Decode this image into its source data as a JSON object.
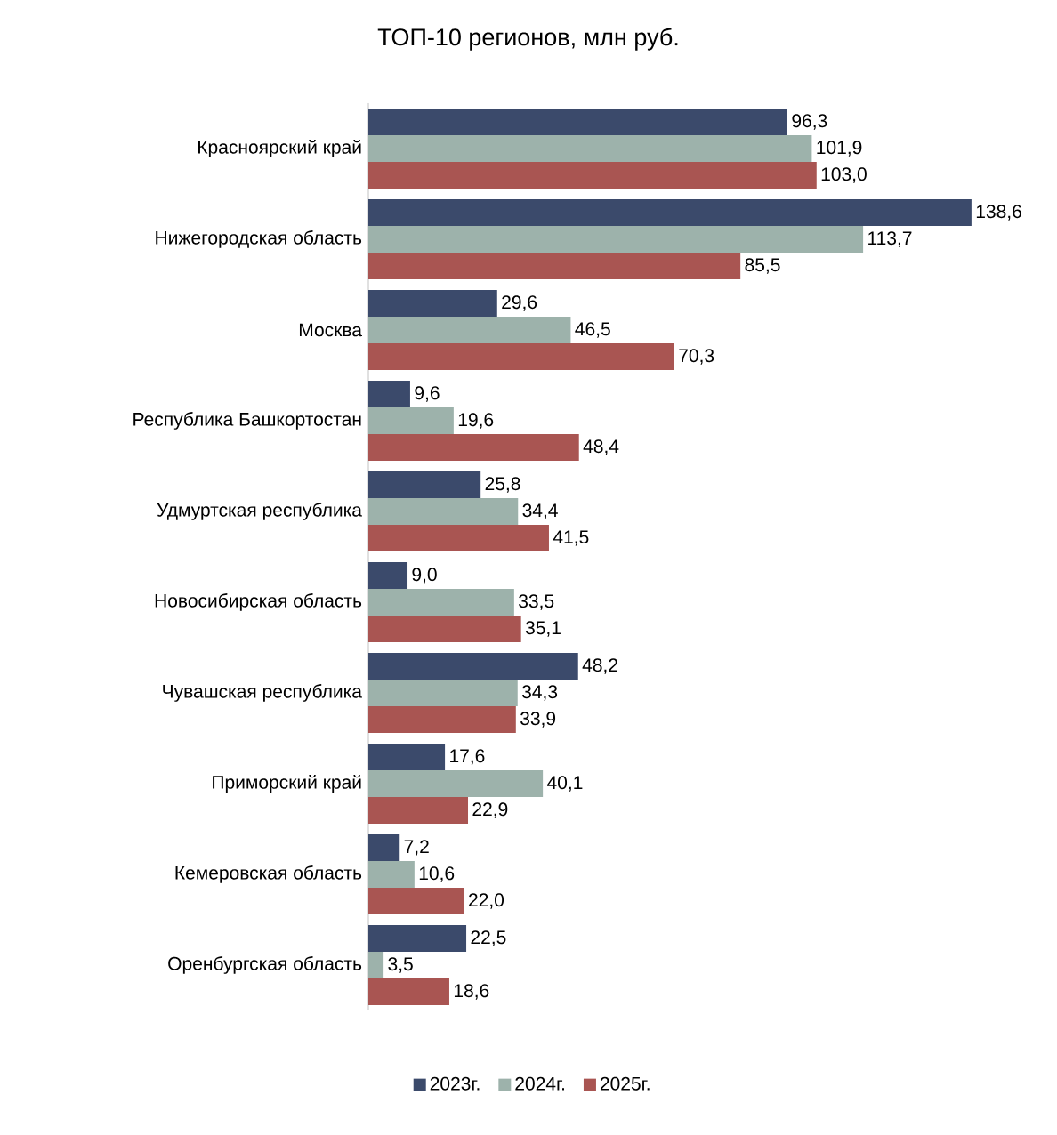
{
  "chart_data": {
    "type": "bar",
    "orientation": "horizontal",
    "title": "ТОП-10 регионов, млн руб.",
    "legend": "bottom",
    "categories": [
      "Красноярский край",
      "Нижегородская область",
      "Москва",
      "Республика Башкортостан",
      "Удмуртская республика",
      "Новосибирская область",
      "Чувашская республика",
      "Приморский край",
      "Кемеровская область",
      "Оренбургская область"
    ],
    "series": [
      {
        "name": "2023г.",
        "color": "#3b4a6b",
        "values": [
          96.3,
          138.6,
          29.6,
          9.6,
          25.8,
          9.0,
          48.2,
          17.6,
          7.2,
          22.5
        ],
        "value_labels": [
          "96,3",
          "138,6",
          "29,6",
          "9,6",
          "25,8",
          "9,0",
          "48,2",
          "17,6",
          "7,2",
          "22,5"
        ]
      },
      {
        "name": "2024г.",
        "color": "#9db2ab",
        "values": [
          101.9,
          113.7,
          46.5,
          19.6,
          34.4,
          33.5,
          34.3,
          40.1,
          10.6,
          3.5
        ],
        "value_labels": [
          "101,9",
          "113,7",
          "46,5",
          "19,6",
          "34,4",
          "33,5",
          "34,3",
          "40,1",
          "10,6",
          "3,5"
        ]
      },
      {
        "name": "2025г.",
        "color": "#a95552",
        "values": [
          103.0,
          85.5,
          70.3,
          48.4,
          41.5,
          35.1,
          33.9,
          22.9,
          22.0,
          18.6
        ],
        "value_labels": [
          "103,0",
          "85,5",
          "70,3",
          "48,4",
          "41,5",
          "35,1",
          "33,9",
          "22,9",
          "22,0",
          "18,6"
        ]
      }
    ]
  }
}
